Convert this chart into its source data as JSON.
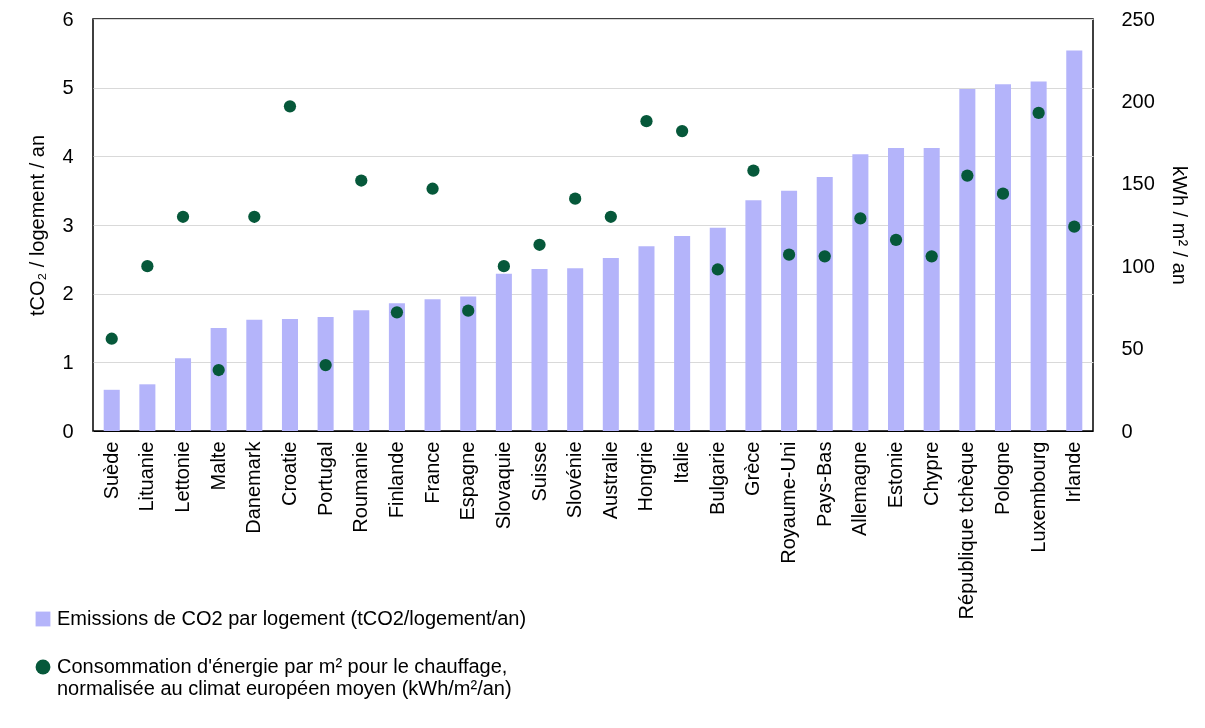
{
  "chart_data": {
    "type": "bar",
    "categories": [
      "Suède",
      "Lituanie",
      "Lettonie",
      "Malte",
      "Danemark",
      "Croatie",
      "Portugal",
      "Roumanie",
      "Finlande",
      "France",
      "Espagne",
      "Slovaquie",
      "Suisse",
      "Slovénie",
      "Australie",
      "Hongrie",
      "Italie",
      "Bulgarie",
      "Grèce",
      "Royaume-Uni",
      "Pays-Bas",
      "Allemagne",
      "Estonie",
      "Chypre",
      "République tchèque",
      "Pologne",
      "Luxembourg",
      "Irlande"
    ],
    "series": [
      {
        "name": "Emissions de CO2 par logement (tCO2/logement/an)",
        "color": "#b4b4fa",
        "values": [
          0.6,
          0.68,
          1.06,
          1.5,
          1.62,
          1.63,
          1.66,
          1.76,
          1.86,
          1.92,
          1.96,
          2.29,
          2.36,
          2.37,
          2.52,
          2.69,
          2.84,
          2.96,
          3.36,
          3.5,
          3.7,
          4.03,
          4.12,
          4.12,
          4.98,
          5.05,
          5.09,
          5.54
        ]
      },
      {
        "name": "Consommation d'énergie par m² pour le chauffage, normalisée au climat européen moyen (kWh/m²/an)",
        "type": "scatter",
        "axis": "y2",
        "color": "#06583a",
        "values": [
          56,
          100,
          130,
          37,
          130,
          197,
          40,
          152,
          72,
          147,
          73,
          100,
          113,
          141,
          130,
          188,
          182,
          98,
          158,
          107,
          106,
          129,
          116,
          106,
          155,
          144,
          193,
          124
        ]
      }
    ],
    "ylabel": "tCO₂ / logement / an",
    "y2label": "kWh / m² / an",
    "ylim": [
      0,
      6
    ],
    "yticks": [
      0,
      1,
      2,
      3,
      4,
      5,
      6
    ],
    "y2lim": [
      0,
      250
    ],
    "y2ticks": [
      0,
      50,
      100,
      150,
      200,
      250
    ],
    "grid": "y",
    "legend": "bottom left",
    "marker": "circle"
  }
}
